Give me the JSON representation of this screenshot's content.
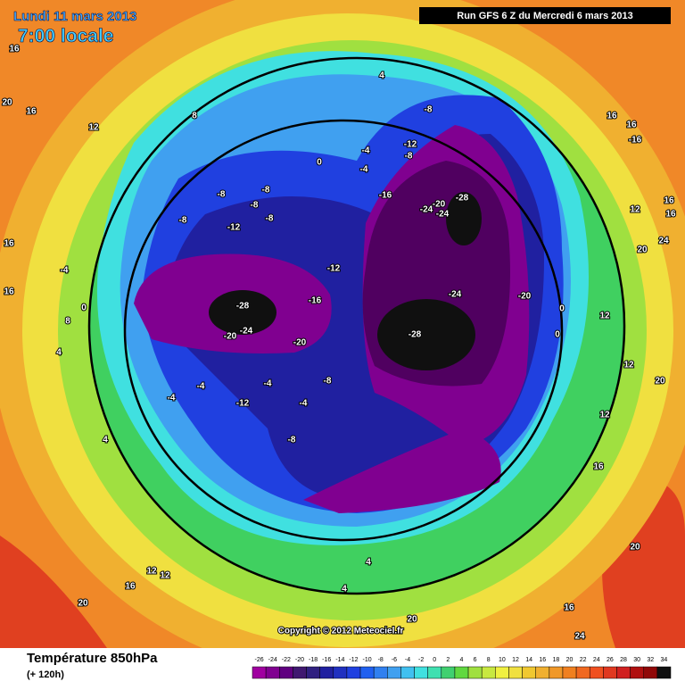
{
  "header": {
    "date": "Lundi 11 mars 2013",
    "time": "7:00 locale",
    "run": "Run GFS 6 Z du Mercredi 6 mars 2013"
  },
  "copyright": "Copyright © 2012 Meteociel.fr",
  "footer": {
    "title": "Température 850hPa",
    "lead": "(+ 120h)"
  },
  "scale": {
    "values": [
      -26,
      -24,
      -22,
      -20,
      -18,
      -16,
      -14,
      -12,
      -10,
      -8,
      -6,
      -4,
      -2,
      0,
      2,
      4,
      6,
      8,
      10,
      12,
      14,
      16,
      18,
      20,
      22,
      24,
      26,
      28,
      30,
      32,
      34
    ],
    "colors": [
      "#a000a0",
      "#800090",
      "#600080",
      "#401870",
      "#302080",
      "#2020a0",
      "#2030c0",
      "#2040e0",
      "#2060f0",
      "#3080f0",
      "#40a0f0",
      "#40c0f0",
      "#40e0e0",
      "#40e0b0",
      "#40d070",
      "#60d840",
      "#a0e040",
      "#c8e840",
      "#f0f040",
      "#f0e040",
      "#f0c830",
      "#f0b030",
      "#f09828",
      "#f08020",
      "#f06820",
      "#f05020",
      "#e03820",
      "#d02020",
      "#b01010",
      "#900808",
      "#101010"
    ]
  },
  "map_labels": [
    16,
    20,
    16,
    12,
    8,
    4,
    -8,
    16,
    16,
    -16,
    -12,
    -8,
    -4,
    0,
    -4,
    -16,
    -24,
    -20,
    -24,
    -28,
    -8,
    -8,
    -8,
    -8,
    -12,
    -8,
    -12,
    16,
    12,
    16,
    24,
    20,
    -28,
    -16,
    -24,
    -20,
    -28,
    -20,
    -24,
    -20,
    -8,
    -4,
    -4,
    -4,
    -12,
    -4,
    -8,
    16,
    -4,
    16,
    0,
    8,
    4,
    4,
    12,
    0,
    0,
    20,
    12,
    12,
    16,
    20,
    12,
    12,
    16,
    20,
    4,
    20,
    16,
    4,
    24
  ]
}
